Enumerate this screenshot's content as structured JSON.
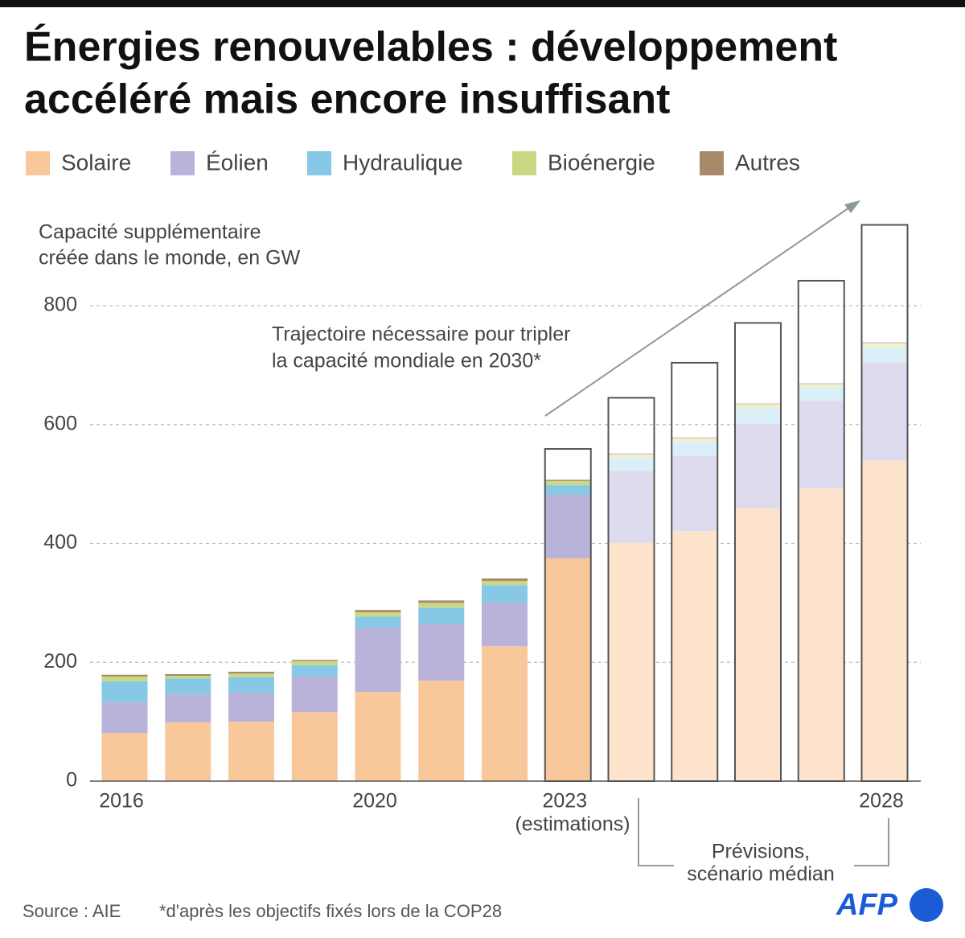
{
  "chart_data": {
    "type": "stacked_bar",
    "title": [
      "Énergies renouvelables : développement",
      "accéléré mais encore insuffisant"
    ],
    "y_label": [
      "Capacité supplémentaire",
      "créée dans le monde, en GW"
    ],
    "categories": [
      "2016",
      null,
      null,
      null,
      "2020",
      null,
      null,
      "2023",
      null,
      null,
      null,
      null,
      "2028"
    ],
    "category_note": "(estimations)",
    "forecast": [
      false,
      false,
      false,
      false,
      false,
      false,
      false,
      false,
      true,
      true,
      true,
      true,
      true
    ],
    "forecast_note": [
      "Prévisions,",
      "scénario médian"
    ],
    "series": [
      {
        "name": "Solaire",
        "color": "#f8c89a",
        "forecast_color": "#fde2cc",
        "values": [
          81,
          99,
          100,
          116,
          150,
          169,
          227,
          375,
          401,
          421,
          459,
          493,
          539
        ]
      },
      {
        "name": "Éolien",
        "color": "#b9b3d9",
        "forecast_color": "#dedbee",
        "values": [
          52,
          47,
          49,
          60,
          108,
          95,
          73,
          107,
          121,
          126,
          143,
          147,
          166
        ]
      },
      {
        "name": "Hydraulique",
        "color": "#86c8e6",
        "forecast_color": "#daeff8",
        "values": [
          35,
          27,
          26,
          19,
          19,
          28,
          30,
          16,
          22,
          24,
          25,
          22,
          24
        ]
      },
      {
        "name": "Bioénergie",
        "color": "#c9d982",
        "forecast_color": "#edf2cf",
        "values": [
          8,
          4,
          6,
          7,
          7,
          8,
          7,
          7,
          5,
          5,
          6,
          5,
          7
        ]
      },
      {
        "name": "Autres",
        "color": "#a88a6a",
        "forecast_color": "#e2d6c8",
        "values": [
          3,
          3,
          3,
          2,
          4,
          4,
          4,
          2,
          3,
          3,
          3,
          3,
          3
        ]
      }
    ],
    "target": {
      "label": [
        "Trajectoire nécessaire pour tripler",
        "la capacité mondiale en 2030*"
      ],
      "color": "#555555",
      "values": [
        null,
        null,
        null,
        null,
        null,
        null,
        null,
        559,
        645,
        704,
        771,
        842,
        936
      ]
    },
    "ylim": [
      0,
      950
    ],
    "yticks": [
      0,
      200,
      400,
      600,
      800
    ],
    "grid": true,
    "source": "Source : AIE",
    "footnote": "*d'après les objectifs fixés lors de la COP28",
    "logo": "AFP"
  }
}
